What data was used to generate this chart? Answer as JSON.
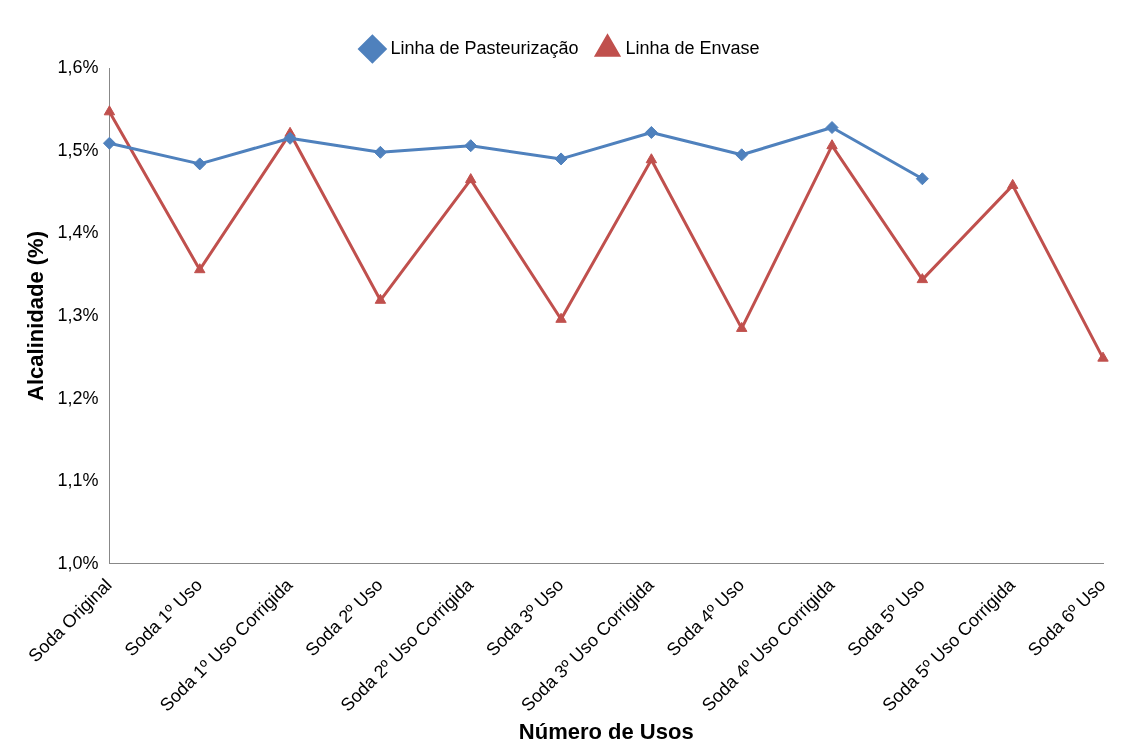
{
  "chart_data": {
    "type": "line",
    "xlabel": "Número de Usos",
    "ylabel": "Alcalinidade (%)",
    "categories": [
      "Soda Original",
      "Soda 1º Uso",
      "Soda 1º Uso Corrigida",
      "Soda 2º Uso",
      "Soda 2º Uso Corrigida",
      "Soda 3º Uso",
      "Soda 3º Uso Corrigida",
      "Soda 4º Uso",
      "Soda 4º Uso Corrigida",
      "Soda 5º Uso",
      "Soda 5º Uso Corrigida",
      "Soda 6º Uso"
    ],
    "series": [
      {
        "name": "Linha de Pasteurização",
        "color": "#4f81bd",
        "marker": "diamond",
        "values": [
          1.509,
          1.484,
          1.515,
          1.498,
          1.506,
          1.49,
          1.522,
          1.495,
          1.528,
          1.466,
          null,
          null
        ]
      },
      {
        "name": "Linha de Envase",
        "color": "#c0504d",
        "marker": "triangle",
        "values": [
          1.547,
          1.356,
          1.521,
          1.319,
          1.465,
          1.296,
          1.489,
          1.285,
          1.506,
          1.344,
          1.458,
          1.249
        ]
      }
    ],
    "ylim": [
      1.0,
      1.6
    ],
    "yticks": [
      {
        "value": 1.0,
        "label": "1,0%"
      },
      {
        "value": 1.1,
        "label": "1,1%"
      },
      {
        "value": 1.2,
        "label": "1,2%"
      },
      {
        "value": 1.3,
        "label": "1,3%"
      },
      {
        "value": 1.4,
        "label": "1,4%"
      },
      {
        "value": 1.5,
        "label": "1,5%"
      },
      {
        "value": 1.6,
        "label": "1,6%"
      }
    ],
    "grid": false,
    "legend": "top",
    "line_style": "solid"
  }
}
